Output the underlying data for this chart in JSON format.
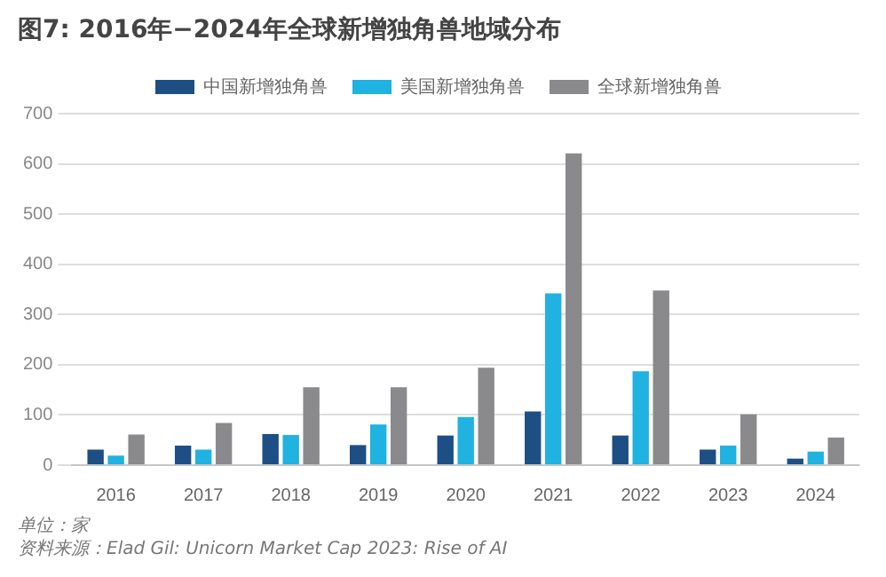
{
  "chart_data": {
    "type": "bar",
    "title": "图7: 2016年−2024年全球新增独角兽地域分布",
    "categories": [
      "2016",
      "2017",
      "2018",
      "2019",
      "2020",
      "2021",
      "2022",
      "2023",
      "2024"
    ],
    "series": [
      {
        "name": "中国新增独角兽",
        "color": "#1d4f85",
        "values": [
          31,
          39,
          62,
          40,
          59,
          107,
          59,
          31,
          13
        ]
      },
      {
        "name": "美国新增独角兽",
        "color": "#20b2e0",
        "values": [
          19,
          31,
          60,
          81,
          96,
          342,
          187,
          39,
          27
        ]
      },
      {
        "name": "全球新增独角兽",
        "color": "#8a8a8c",
        "values": [
          61,
          84,
          155,
          155,
          194,
          621,
          348,
          101,
          55
        ]
      }
    ],
    "ylim": [
      0,
      700
    ],
    "yticks": [
      0,
      100,
      200,
      300,
      400,
      500,
      600,
      700
    ],
    "grid": "y",
    "legend": "top",
    "annotations": [
      "单位：家",
      "资料来源：Elad Gil: Unicorn Market Cap 2023: Rise of AI"
    ]
  }
}
